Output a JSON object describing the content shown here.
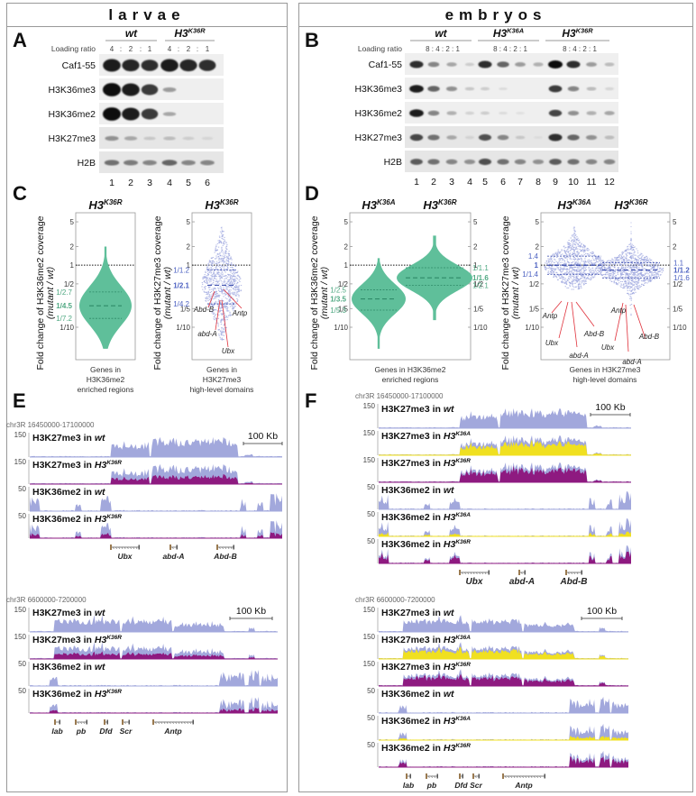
{
  "headers": {
    "left": "larvae",
    "right": "embryos"
  },
  "panel_labels": {
    "A": "A",
    "B": "B",
    "C": "C",
    "D": "D",
    "E": "E",
    "F": "F"
  },
  "panelA": {
    "groups": [
      {
        "name": "wt",
        "sup": ""
      },
      {
        "name": "H3",
        "sup": "K36R"
      }
    ],
    "loading_label": "Loading ratio",
    "ratios": [
      "4",
      ":",
      "2",
      ":",
      "1",
      "4",
      ":",
      "2",
      ":",
      "1"
    ],
    "blots": [
      "Caf1-55",
      "H3K36me3",
      "H3K36me2",
      "H3K27me3",
      "H2B"
    ],
    "lanes": [
      "1",
      "2",
      "3",
      "4",
      "5",
      "6"
    ],
    "band_intensity": [
      [
        0.95,
        0.9,
        0.85,
        0.95,
        0.9,
        0.85
      ],
      [
        1.0,
        0.95,
        0.8,
        0.35,
        0,
        0
      ],
      [
        1.0,
        0.95,
        0.8,
        0.3,
        0,
        0
      ],
      [
        0.4,
        0.3,
        0.15,
        0.2,
        0.12,
        0.08
      ],
      [
        0.55,
        0.5,
        0.45,
        0.6,
        0.45,
        0.45
      ]
    ]
  },
  "panelB": {
    "groups": [
      {
        "name": "wt",
        "sup": ""
      },
      {
        "name": "H3",
        "sup": "K36A"
      },
      {
        "name": "H3",
        "sup": "K36R"
      }
    ],
    "loading_label": "Loading ratio",
    "ratios": [
      "8 : 4 : 2 : 1",
      "8 : 4 : 2 : 1",
      "8 : 4 : 2 : 1"
    ],
    "blots": [
      "Caf1-55",
      "H3K36me3",
      "H3K36me2",
      "H3K27me3",
      "H2B"
    ],
    "lanes": [
      "1",
      "2",
      "3",
      "4",
      "5",
      "6",
      "7",
      "8",
      "9",
      "10",
      "11",
      "12"
    ],
    "band_intensity": [
      [
        0.85,
        0.45,
        0.3,
        0.12,
        0.85,
        0.6,
        0.35,
        0.25,
        1.0,
        0.85,
        0.35,
        0.2
      ],
      [
        0.95,
        0.6,
        0.4,
        0.15,
        0.12,
        0.05,
        0,
        0,
        0.8,
        0.45,
        0.2,
        0.08
      ],
      [
        0.95,
        0.45,
        0.25,
        0.1,
        0.12,
        0.05,
        0.03,
        0,
        0.75,
        0.4,
        0.25,
        0.3
      ],
      [
        0.75,
        0.55,
        0.3,
        0.1,
        0.7,
        0.45,
        0.15,
        0.05,
        0.85,
        0.6,
        0.4,
        0.2
      ],
      [
        0.65,
        0.55,
        0.45,
        0.4,
        0.7,
        0.55,
        0.45,
        0.4,
        0.65,
        0.55,
        0.45,
        0.45
      ]
    ]
  },
  "colors": {
    "green": "#5fbf9a",
    "green_dark": "#2f8a68",
    "green_text": "#4fa882",
    "blue_points": "#9aa3dd",
    "blue_text": "#4a5fc0",
    "blue_dark": "#2b3fa8",
    "wt_track": "#a2a8dc",
    "k36a_track": "#f0e020",
    "k36r_track": "#8e1a80",
    "gene": "#9a7a50",
    "annot_line": "#e0303a"
  },
  "chart_data": [
    {
      "type": "violin",
      "panel": "C-left",
      "title": "H3K36R",
      "ylabel": "Fold change of H3K36me2 coverage (mutant / wt)",
      "xlabel": "Genes in H3K36me2 enriched regions",
      "yscale": "log",
      "yticks": [
        "5",
        "2",
        "1",
        "1/2",
        "1/10"
      ],
      "ytick_values": [
        5,
        2,
        1,
        0.5,
        0.1
      ],
      "ylim": [
        0.03,
        7
      ],
      "reference_line": 1,
      "series": [
        {
          "name": "H3K36R",
          "median": "1/4.5",
          "q1": "1/7.2",
          "q3": "1/2.7",
          "median_value": 0.222,
          "q1_value": 0.139,
          "q3_value": 0.37,
          "min": 0.045,
          "max": 2.0
        }
      ]
    },
    {
      "type": "beeswarm",
      "panel": "C-right",
      "title": "H3K36R",
      "ylabel": "Fold change of H3K27me3 coverage (mutant / wt)",
      "xlabel": "Genes in H3K27me3 high-level domains",
      "yscale": "log",
      "yticks": [
        "5",
        "2",
        "1",
        "1/5",
        "1/10"
      ],
      "ytick_values": [
        5,
        2,
        1,
        0.2,
        0.1
      ],
      "ylim": [
        0.03,
        7
      ],
      "reference_line": 1,
      "series": [
        {
          "name": "H3K36R",
          "median": "1/2.1",
          "q1": "1/4.2",
          "q3": "1/1.2",
          "median_value": 0.476,
          "q1_value": 0.238,
          "q3_value": 0.833,
          "min": 0.06,
          "max": 4.5
        }
      ],
      "annotations": [
        {
          "gene": "Abd-B",
          "value": 0.32
        },
        {
          "gene": "Antp",
          "value": 0.38
        },
        {
          "gene": "abd-A",
          "value": 0.26
        },
        {
          "gene": "Ubx",
          "value": 0.24
        }
      ]
    },
    {
      "type": "violin",
      "panel": "D-left",
      "titles": [
        "H3K36A",
        "H3K36R"
      ],
      "ylabel": "Fold change of H3K36me2 coverage (mutant / wt)",
      "xlabel": "Genes in H3K36me2 enriched regions",
      "yscale": "log",
      "yticks": [
        "5",
        "2",
        "1",
        "1/2",
        "1/5",
        "1/10"
      ],
      "ytick_values": [
        5,
        2,
        1,
        0.5,
        0.2,
        0.1
      ],
      "ylim": [
        0.03,
        7
      ],
      "reference_line": 1,
      "series": [
        {
          "name": "H3K36A",
          "median": "1/3.5",
          "q1": "1/5.3",
          "q3": "1/2.5",
          "median_value": 0.286,
          "q1_value": 0.189,
          "q3_value": 0.4,
          "min": 0.045,
          "max": 1.3
        },
        {
          "name": "H3K36R",
          "median": "1/1.6",
          "q1": "1/2.1",
          "q3": "1/1.1",
          "median_value": 0.625,
          "q1_value": 0.476,
          "q3_value": 0.909,
          "min": 0.13,
          "max": 3.0
        }
      ]
    },
    {
      "type": "beeswarm",
      "panel": "D-right",
      "titles": [
        "H3K36A",
        "H3K36R"
      ],
      "ylabel": "Fold change of H3K27me3 coverage (mutant / wt)",
      "xlabel": "Genes in H3K27me3 high-level domains",
      "yscale": "log",
      "yticks": [
        "5",
        "2",
        "1/2",
        "1/5",
        "1/10"
      ],
      "ytick_values": [
        5,
        2,
        0.5,
        0.2,
        0.1
      ],
      "ylim": [
        0.03,
        7
      ],
      "reference_line": 1,
      "series": [
        {
          "name": "H3K36A",
          "median": "1",
          "q1": "1/1.4",
          "q3": "1.4",
          "median_value": 1.0,
          "q1_value": 0.714,
          "q3_value": 1.4,
          "min": 0.4,
          "max": 4.5
        },
        {
          "name": "H3K36R",
          "median": "1/1.2",
          "q1": "1/1.6",
          "q3": "1.1",
          "median_value": 0.833,
          "q1_value": 0.625,
          "q3_value": 1.1,
          "min": 0.15,
          "max": 6
        }
      ],
      "annotations": [
        {
          "series": "H3K36A",
          "gene": "Antp",
          "value": 0.72
        },
        {
          "series": "H3K36A",
          "gene": "Ubx",
          "value": 0.7
        },
        {
          "series": "H3K36A",
          "gene": "abd-A",
          "value": 0.7
        },
        {
          "series": "H3K36A",
          "gene": "Abd-B",
          "value": 0.72
        },
        {
          "series": "H3K36R",
          "gene": "Antp",
          "value": 0.62
        },
        {
          "series": "H3K36R",
          "gene": "Ubx",
          "value": 0.62
        },
        {
          "series": "H3K36R",
          "gene": "abd-A",
          "value": 0.6
        },
        {
          "series": "H3K36R",
          "gene": "Abd-B",
          "value": 0.6
        }
      ]
    },
    {
      "type": "area",
      "panel": "E",
      "regions": [
        {
          "coords": "chr3R 16450000-17100000",
          "scalebar": "100 Kb",
          "tracks": [
            {
              "label": "H3K27me3 in ",
              "geno": "wt",
              "sup": "",
              "ymax": "150",
              "overlay": "none"
            },
            {
              "label": "H3K27me3 in ",
              "geno": "H3",
              "sup": "K36R",
              "ymax": "150",
              "overlay": "k36r"
            },
            {
              "label": "H3K36me2 in ",
              "geno": "wt",
              "sup": "",
              "ymax": "50",
              "overlay": "none"
            },
            {
              "label": "H3K36me2 in ",
              "geno": "H3",
              "sup": "K36R",
              "ymax": "50",
              "overlay": "k36r"
            }
          ],
          "genes": [
            "Ubx",
            "abd-A",
            "Abd-B"
          ]
        },
        {
          "coords": "chr3R 6600000-7200000",
          "scalebar": "100 Kb",
          "tracks": [
            {
              "label": "H3K27me3 in ",
              "geno": "wt",
              "sup": "",
              "ymax": "150",
              "overlay": "none"
            },
            {
              "label": "H3K27me3 in ",
              "geno": "H3",
              "sup": "K36R",
              "ymax": "150",
              "overlay": "k36r"
            },
            {
              "label": "H3K36me2 in ",
              "geno": "wt",
              "sup": "",
              "ymax": "50",
              "overlay": "none"
            },
            {
              "label": "H3K36me2 in ",
              "geno": "H3",
              "sup": "K36R",
              "ymax": "50",
              "overlay": "k36r"
            }
          ],
          "genes": [
            "lab",
            "pb",
            "Dfd",
            "Scr",
            "Antp"
          ]
        }
      ]
    },
    {
      "type": "area",
      "panel": "F",
      "regions": [
        {
          "coords": "chr3R 16450000-17100000",
          "scalebar": "100 Kb",
          "tracks": [
            {
              "label": "H3K27me3 in ",
              "geno": "wt",
              "sup": "",
              "ymax": "150",
              "overlay": "none"
            },
            {
              "label": "H3K27me3 in ",
              "geno": "H3",
              "sup": "K36A",
              "ymax": "150",
              "overlay": "k36a"
            },
            {
              "label": "H3K27me3 in ",
              "geno": "H3",
              "sup": "K36R",
              "ymax": "150",
              "overlay": "k36r"
            },
            {
              "label": "H3K36me2 in ",
              "geno": "wt",
              "sup": "",
              "ymax": "50",
              "overlay": "none"
            },
            {
              "label": "H3K36me2 in ",
              "geno": "H3",
              "sup": "K36A",
              "ymax": "50",
              "overlay": "k36a"
            },
            {
              "label": "H3K36me2 in ",
              "geno": "H3",
              "sup": "K36R",
              "ymax": "50",
              "overlay": "k36r"
            }
          ],
          "genes": [
            "Ubx",
            "abd-A",
            "Abd-B"
          ]
        },
        {
          "coords": "chr3R 6600000-7200000",
          "scalebar": "100 Kb",
          "tracks": [
            {
              "label": "H3K27me3 in ",
              "geno": "wt",
              "sup": "",
              "ymax": "150",
              "overlay": "none"
            },
            {
              "label": "H3K27me3 in ",
              "geno": "H3",
              "sup": "K36A",
              "ymax": "150",
              "overlay": "k36a"
            },
            {
              "label": "H3K27me3 in ",
              "geno": "H3",
              "sup": "K36R",
              "ymax": "150",
              "overlay": "k36r"
            },
            {
              "label": "H3K36me2 in ",
              "geno": "wt",
              "sup": "",
              "ymax": "50",
              "overlay": "none"
            },
            {
              "label": "H3K36me2 in ",
              "geno": "H3",
              "sup": "K36A",
              "ymax": "50",
              "overlay": "k36a"
            },
            {
              "label": "H3K36me2 in ",
              "geno": "H3",
              "sup": "K36R",
              "ymax": "50",
              "overlay": "k36r"
            }
          ],
          "genes": [
            "lab",
            "pb",
            "Dfd",
            "Scr",
            "Antp"
          ]
        }
      ]
    }
  ]
}
